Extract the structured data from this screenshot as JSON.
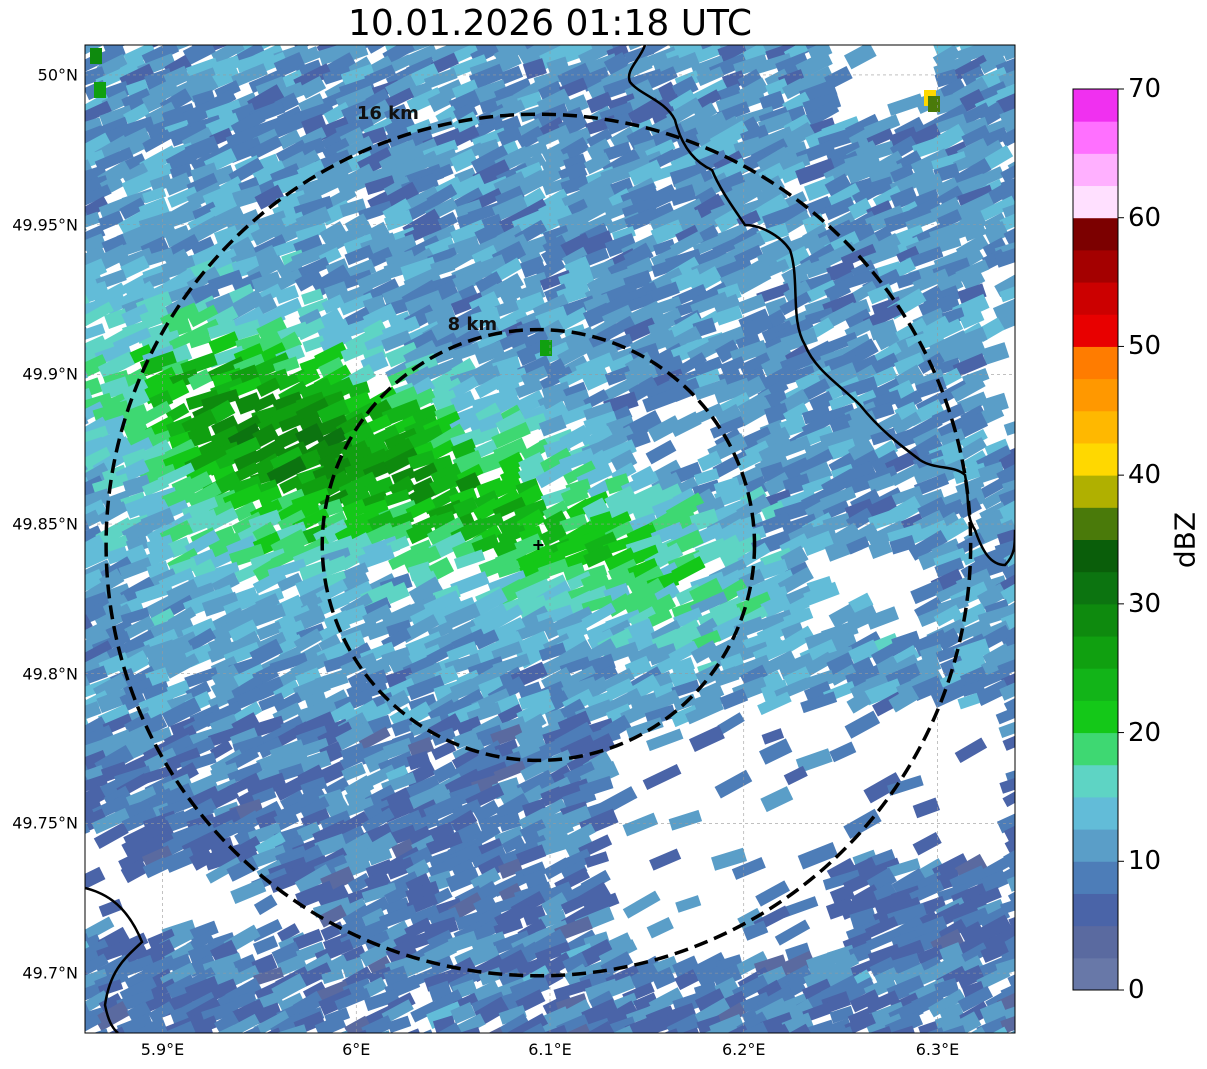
{
  "title": "10.01.2026 01:18 UTC",
  "map": {
    "lon_range": [
      5.86,
      6.34
    ],
    "lat_range": [
      49.68,
      50.01
    ],
    "lon_ticks": [
      {
        "value": 5.9,
        "label": "5.9°E"
      },
      {
        "value": 6.0,
        "label": "6°E"
      },
      {
        "value": 6.1,
        "label": "6.1°E"
      },
      {
        "value": 6.2,
        "label": "6.2°E"
      },
      {
        "value": 6.3,
        "label": "6.3°E"
      }
    ],
    "lat_ticks": [
      {
        "value": 50.0,
        "label": "50°N"
      },
      {
        "value": 49.95,
        "label": "49.95°N"
      },
      {
        "value": 49.9,
        "label": "49.9°N"
      },
      {
        "value": 49.85,
        "label": "49.85°N"
      },
      {
        "value": 49.8,
        "label": "49.8°N"
      },
      {
        "value": 49.75,
        "label": "49.75°N"
      },
      {
        "value": 49.7,
        "label": "49.7°N"
      }
    ],
    "grid": true,
    "radar_site": {
      "lon": 6.094,
      "lat": 49.843
    },
    "range_rings": [
      {
        "radius_km": 8,
        "label": "8 km"
      },
      {
        "radius_km": 16,
        "label": "16 km"
      }
    ]
  },
  "colorbar": {
    "label": "dBZ",
    "vmin": 0,
    "vmax": 70,
    "ticks": [
      0,
      10,
      20,
      30,
      40,
      50,
      60,
      70
    ],
    "colors": [
      "#6878a8",
      "#5a6aa0",
      "#4a64a8",
      "#4d7db8",
      "#5a9ec8",
      "#62bcd8",
      "#5ed4c4",
      "#3ed872",
      "#14c818",
      "#12b418",
      "#10a010",
      "#0e8a0e",
      "#0c7410",
      "#0a5e0a",
      "#4a7a0a",
      "#b0b000",
      "#ffd800",
      "#ffb800",
      "#ff9800",
      "#ff7c00",
      "#e80000",
      "#cc0000",
      "#a40000",
      "#7c0000",
      "#ffe0ff",
      "#ffb0ff",
      "#ff70ff",
      "#f030f0"
    ]
  }
}
